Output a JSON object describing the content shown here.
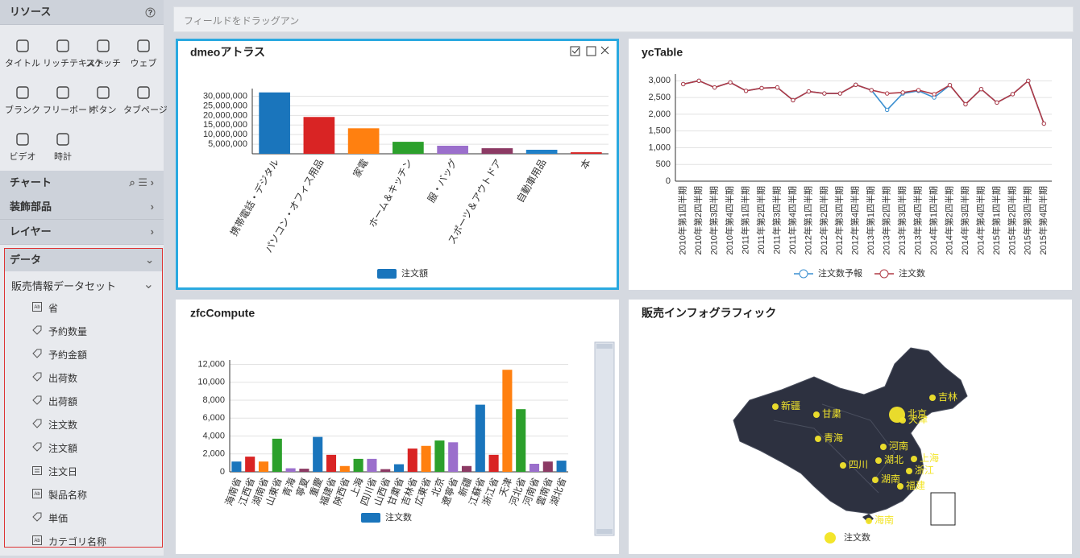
{
  "sidebar": {
    "title": "リソース",
    "tools": [
      "タイトル",
      "リッチテキスト",
      "スケッチ",
      "ウェブ",
      "ブランク",
      "フリーボード",
      "ボタン",
      "タブページ",
      "ビデオ",
      "時計"
    ],
    "sections": [
      "チャート",
      "装飾部品",
      "レイヤー",
      "データ"
    ],
    "dataset": "販売情報データセット",
    "fields": [
      "省",
      "予約数量",
      "予約金額",
      "出荷数",
      "出荷額",
      "注文数",
      "注文額",
      "注文日",
      "製品名称",
      "単価",
      "カテゴリ名称"
    ]
  },
  "field_bar": {
    "placeholder": "フィールドをドラッグアン"
  },
  "chart_data": [
    {
      "type": "bar",
      "title": "dmeoアトラス",
      "categories": [
        "携帯電話・デジタル",
        "パソコン・オフィス用品",
        "家電",
        "ホーム＆キッチン",
        "服・バッグ",
        "スポーツ＆アウトドア",
        "自動車用品",
        "本"
      ],
      "series": [
        {
          "name": "注文額",
          "color": "#1a75bc",
          "values": [
            32000000,
            19200000,
            13300000,
            6250000,
            4200000,
            2900000,
            2100000,
            800000
          ]
        }
      ],
      "colors": [
        "#1a75bc",
        "#d92424",
        "#ff8010",
        "#2ca02c",
        "#9b6fcc",
        "#8c3a64",
        "#1f80c8",
        "#d92424"
      ],
      "ylim": [
        0,
        34000000
      ],
      "yticks": [
        {
          "value": 5000000,
          "label": "5,000,000"
        },
        {
          "value": 10000000,
          "label": "10,000,000"
        },
        {
          "value": 15000000,
          "label": "15,000,000"
        },
        {
          "value": 20000000,
          "label": "20,000,000"
        },
        {
          "value": 25000000,
          "label": "25,000,000"
        },
        {
          "value": 30000000,
          "label": "30,000,000"
        }
      ],
      "grid": true
    },
    {
      "type": "line",
      "title": "ycTable",
      "categories": [
        "2010年第1四半期",
        "2010年第2四半期",
        "2010年第3四半期",
        "2010年第4四半期",
        "2011年第1四半期",
        "2011年第2四半期",
        "2011年第3四半期",
        "2011年第4四半期",
        "2012年第1四半期",
        "2012年第2四半期",
        "2012年第3四半期",
        "2012年第4四半期",
        "2013年第1四半期",
        "2013年第2四半期",
        "2013年第3四半期",
        "2013年第4四半期",
        "2014年第1四半期",
        "2014年第2四半期",
        "2014年第3四半期",
        "2014年第4四半期",
        "2015年第1四半期",
        "2015年第2四半期",
        "2015年第3四半期",
        "2015年第4四半期"
      ],
      "series": [
        {
          "name": "注文数予報",
          "color": "#3a8fd0",
          "values": [
            2900,
            3000,
            2800,
            2950,
            2700,
            2780,
            2800,
            2420,
            2680,
            2620,
            2620,
            2880,
            2720,
            2130,
            2620,
            2700,
            2500,
            2870,
            2300,
            2750,
            2350,
            2600,
            3000,
            1720
          ]
        },
        {
          "name": "注文数",
          "color": "#b03a45",
          "values": [
            2900,
            3000,
            2800,
            2950,
            2700,
            2780,
            2800,
            2420,
            2680,
            2620,
            2620,
            2880,
            2720,
            2620,
            2650,
            2720,
            2600,
            2870,
            2300,
            2750,
            2350,
            2600,
            3000,
            1720
          ]
        }
      ],
      "ylim": [
        0,
        3200
      ],
      "yticks": [
        0,
        {
          "value": 500,
          "label": "500"
        },
        {
          "value": 1000,
          "label": "1,000"
        },
        {
          "value": 1500,
          "label": "1,500"
        },
        {
          "value": 2000,
          "label": "2,000"
        },
        {
          "value": 2500,
          "label": "2,500"
        },
        {
          "value": 3000,
          "label": "3,000"
        }
      ],
      "grid": true
    },
    {
      "type": "bar",
      "title": "zfcCompute",
      "categories": [
        "海南省",
        "江西省",
        "湖南省",
        "山東省",
        "青海",
        "寧夏",
        "重慶",
        "福建省",
        "陝西省",
        "上海",
        "四川省",
        "山西省",
        "甘粛省",
        "吉林省",
        "広東省",
        "北京",
        "遼寧省",
        "新疆",
        "江蘇省",
        "浙江省",
        "天津",
        "河北省",
        "河南省",
        "雲南省",
        "湖北省"
      ],
      "series": [
        {
          "name": "注文数",
          "color": "#1a75bc",
          "values": [
            1150,
            1700,
            1150,
            3700,
            400,
            350,
            3900,
            1900,
            650,
            1450,
            1450,
            300,
            850,
            2600,
            2900,
            3500,
            3300,
            650,
            7500,
            1900,
            11400,
            7000,
            900,
            1150,
            1250
          ]
        }
      ],
      "colors": [
        "#1a75bc",
        "#d92424",
        "#ff8010",
        "#2ca02c",
        "#9b6fcc",
        "#8c3a64",
        "#1a75bc",
        "#d92424",
        "#ff8010",
        "#2ca02c",
        "#9b6fcc",
        "#8c3a64",
        "#1a75bc",
        "#d92424",
        "#ff8010",
        "#2ca02c",
        "#9b6fcc",
        "#8c3a64",
        "#1a75bc",
        "#d92424",
        "#ff8010",
        "#2ca02c",
        "#9b6fcc",
        "#8c3a64",
        "#1a75bc"
      ],
      "ylim": [
        0,
        12500
      ],
      "yticks": [
        0,
        {
          "value": 2000,
          "label": "2,000"
        },
        {
          "value": 4000,
          "label": "4,000"
        },
        {
          "value": 6000,
          "label": "6,000"
        },
        {
          "value": 8000,
          "label": "8,000"
        },
        {
          "value": 10000,
          "label": "10,000"
        },
        {
          "value": 12000,
          "label": "12,000"
        }
      ],
      "grid": true
    },
    {
      "type": "map",
      "title": "販売インフォグラフィック",
      "places": [
        "新疆",
        "甘粛",
        "青海",
        "四川",
        "吉林",
        "北京",
        "天津",
        "河南",
        "湖北",
        "上海",
        "浙江",
        "湖南",
        "福建",
        "海南"
      ],
      "series": [
        {
          "name": "注文数",
          "color": "#f3e52b"
        }
      ]
    }
  ]
}
